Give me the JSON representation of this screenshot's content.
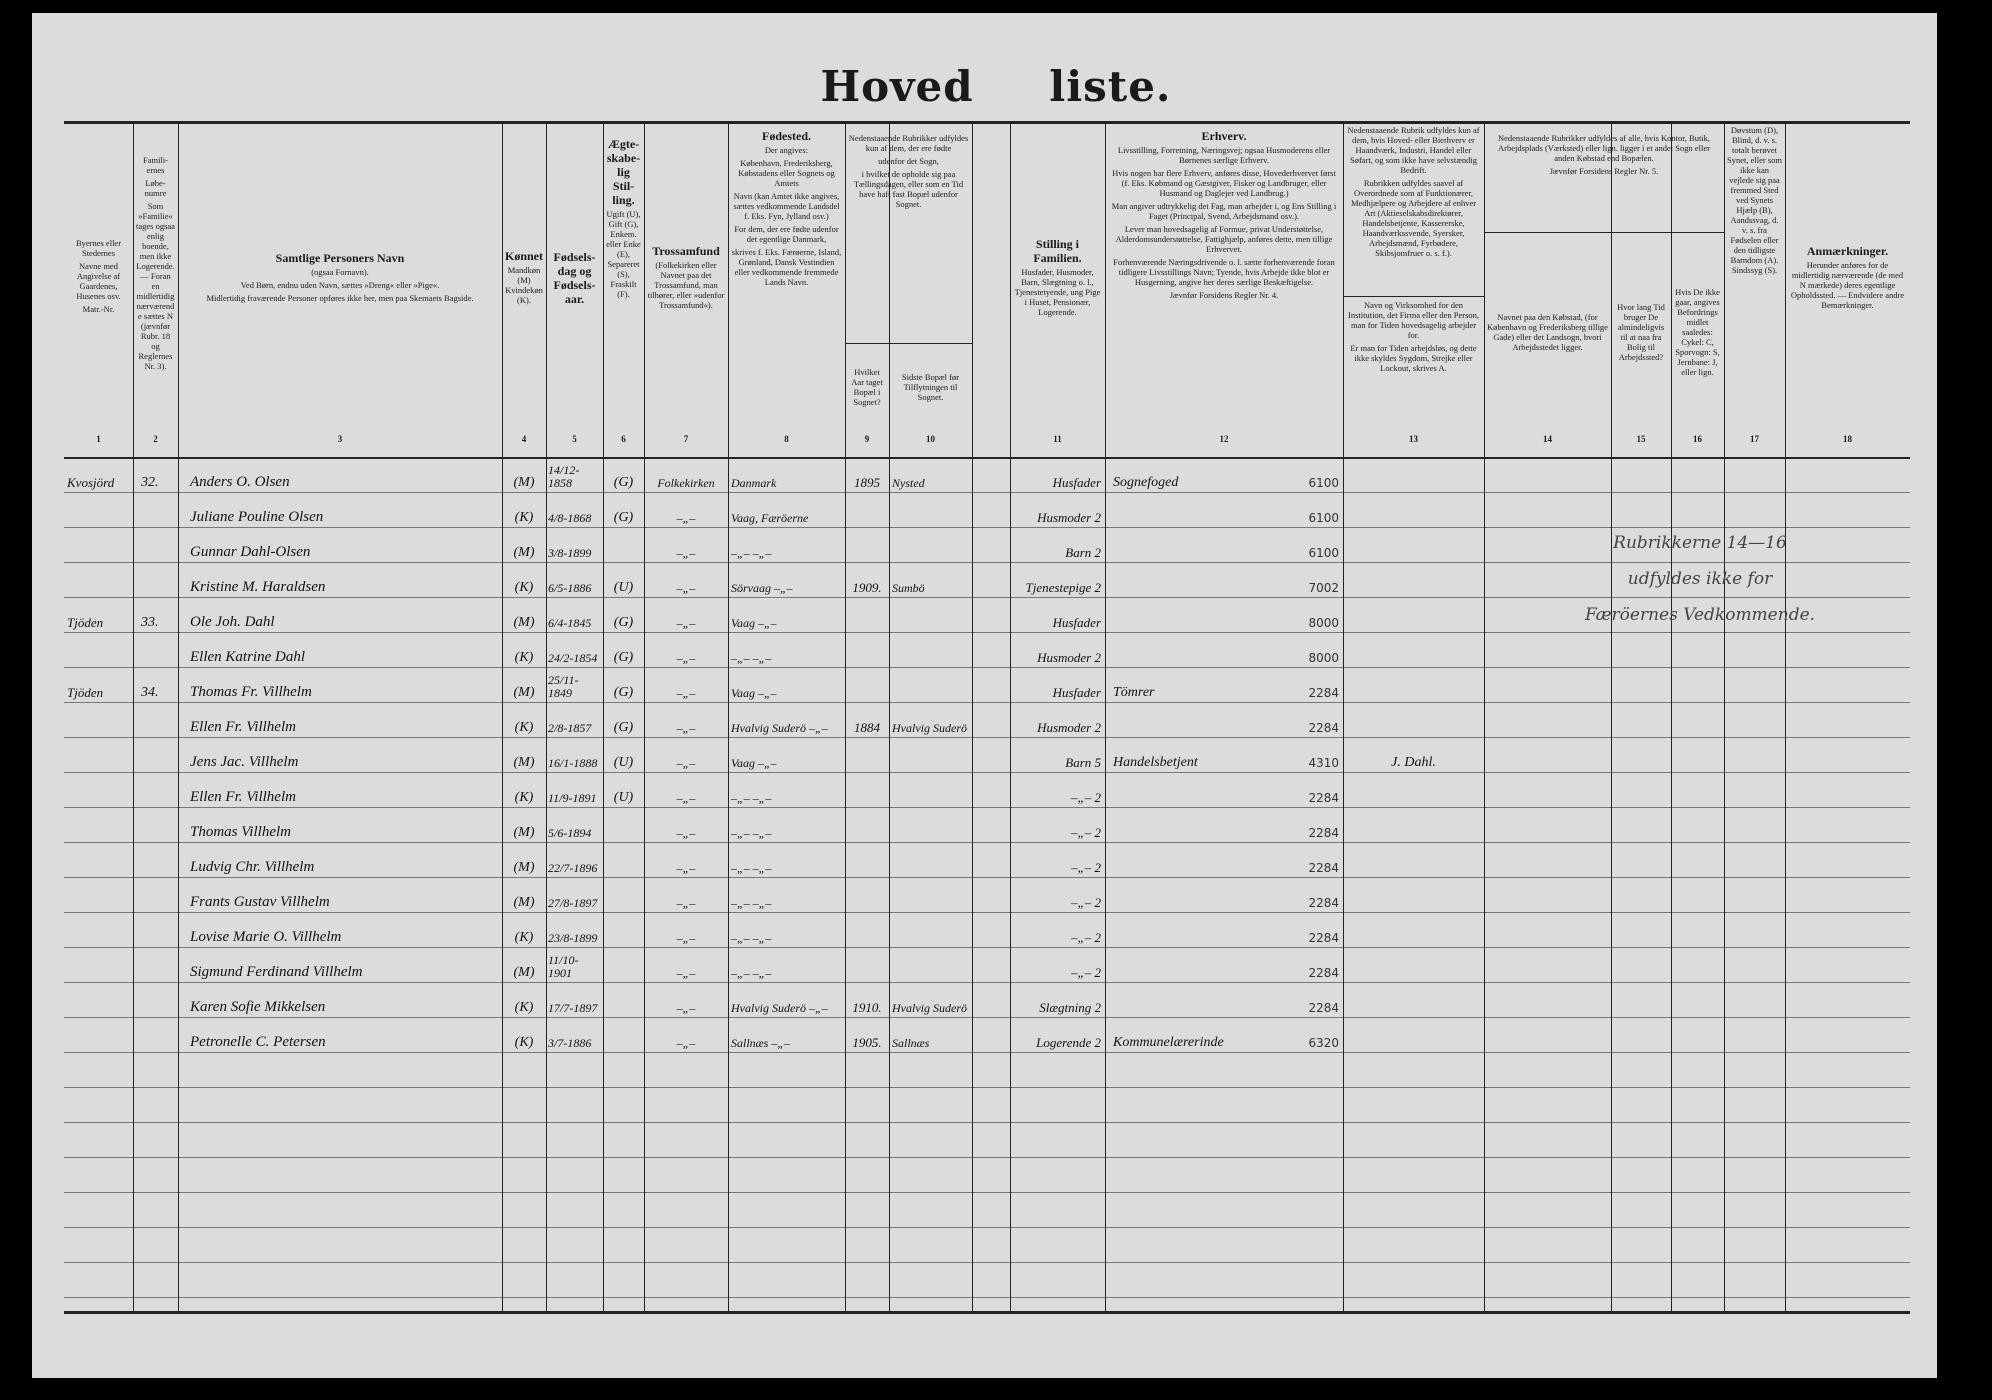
{
  "title": "Hoved liste.",
  "headers": {
    "c1": [
      "Byernes eller Stedernes",
      "Navne med Angivelse af Gaardenes, Husenes osv.",
      "Matr.-Nr."
    ],
    "c2": [
      "Famili-ernes",
      "Løbe-numre",
      "Som »Familie« tages ogsaa enlig boende, men ikke Logerende. — Foran en midlertidig nærværende sættes N (jævnfør Rubr. 18 og Reglernes Nr. 3)."
    ],
    "c3": [
      "Samtlige Personers Navn",
      "(ogsaa Fornavn).",
      "Ved Børn, endnu uden Navn, sættes »Dreng« eller »Pige«.",
      "Midlertidig fraværende Personer opføres ikke her, men paa Skemaets Bagside."
    ],
    "c4": [
      "Kønnet",
      "Mandkøn (M) Kvindekøn (K)."
    ],
    "c5": [
      "Fødsels-dag og Fødsels-aar."
    ],
    "c6": [
      "Ægte-skabe-lig Stil-ling.",
      "Ugift (U), Gift (G), Enkem. eller Enke (E), Separeret (S), Fraskilt (F)."
    ],
    "c7": [
      "Trossamfund",
      "(Folkekirken eller Navnet paa det Trossamfund, man tilhører, eller »udenfor Trossamfund«)."
    ],
    "c8": [
      "Fødested.",
      "Der angives:",
      "København, Frederiksberg, Købstadens eller Sognets og Amtets",
      "Navn (kan Amtet ikke angives, sættes vedkommende Landsdel f. Eks. Fyn, Jylland osv.)",
      "For dem, der ere fødte udenfor det egentlige Danmark,",
      "skrives f. Eks. Færøerne, Island, Grønland, Dansk Vestindien eller vedkommende fremmede Lands Navn."
    ],
    "c9_10_group": [
      "Nedenstaaende Rubrikker udfyldes kun af dem, der ere fødte",
      "udenfor det Sogn,",
      "i hvilket de opholde sig paa Tællingsdagen, eller som en Tid have haft fast Bopæl udenfor Sognet."
    ],
    "c9": [
      "Hvilket Aar taget Bopæl i Sognet?"
    ],
    "c10": [
      "Sidste Bopæl før Tilflytningen til Sognet."
    ],
    "c11": [
      "Stilling i Familien.",
      "Husfader, Husmoder, Barn, Slægtning o. l., Tjenestetyende, ung Pige i Huset, Pensionær, Logerende."
    ],
    "c12": [
      "Erhverv.",
      "Livsstilling, Forretning, Næringsvej; ogsaa Husmoderens eller Børnenes særlige Erhverv.",
      "Hvis nogen har flere Erhverv, anføres disse, Hovederhvervet først (f. Eks. Købmand og Gæstgiver, Fisker og Landbruger, eller Husmand og Daglejer ved Landbrug.)",
      "Man angiver udtrykkelig det Fag, man arbejder i, og Ens Stilling i Faget (Principal, Svend, Arbejdsmand osv.).",
      "Lever man hovedsagelig af Formue, privat Understøttelse, Alderdomsunderstøttelse, Fattighjælp, anføres dette, men tillige Erhvervet.",
      "Forhenværende Næringsdrivende o. l. sætte forhenværende foran tidligere Livsstillings Navn; Tyende, hvis Arbejde ikke blot er Husgerning, angive her deres særlige Beskæftigelse.",
      "Jævnfør Forsidens Regler Nr. 4."
    ],
    "c13_top": [
      "Nedenstaaende Rubrik udfyldes kun af dem, hvis Hoved- eller Bierhverv er Haandværk, Industri, Handel eller Søfart, og som ikke have selvstændig Bedrift.",
      "Rubrikken udfyldes saavel af Overordnede som af Funktionærer, Medhjælpere og Arbejdere af enhver Art (Aktieselskabsdirektører, Handelsbetjente, Kassererske, Haandværkssvende, Syersker, Arbejdsmænd, Fyrbødere, Skibsjomfruer o. s. f.)."
    ],
    "c13": [
      "Navn og Virksomhed for den Institution, det Firma eller den Person, man for Tiden hovedsagelig arbejder for.",
      "Er man for Tiden arbejdsløs, og dette ikke skyldes Sygdom, Strejke eller Lockout, skrives A."
    ],
    "c14_16_group": [
      "Nedenstaaende Rubrikker udfyldes af alle, hvis Kontor, Butik, Arbejdsplads (Værksted) eller lign. ligger i et andet Sogn eller anden Købstad end Bopælen.",
      "Jævnfør Forsidens Regler Nr. 5."
    ],
    "c14": [
      "Navnet paa den Købstad, (for København og Frederiksberg tillige Gade) eller det Landsogn, hvori Arbejdsstedet ligger."
    ],
    "c15": [
      "Hvor lang Tid bruger De almindeligvis til at naa fra Bolig til Arbejdssted?"
    ],
    "c16": [
      "Hvis De ikke gaar, angives Befordringsmidlet saaledes: Cykel: C, Sporvogn: S, Jernbane: J, eller lign."
    ],
    "c17": [
      "Døvstum (D), Blind, d. v. s. totalt berøvet Synet, eller som ikke kan vejlede sig paa fremmed Sted ved Synets Hjælp (B), Aandssvag, d. v. s. fra Fødselen eller den tidligste Barndom (A). Sindssyg (S)."
    ],
    "c18": [
      "Anmærkninger.",
      "Herunder anføres for de midlertidig nærværende (de med N mærkede) deres egentlige Opholdssted. — Endvidere andre Bemærkninger."
    ]
  },
  "column_numbers": [
    "1",
    "2",
    "3",
    "4",
    "5",
    "6",
    "7",
    "8",
    "9",
    "10",
    "11",
    "12",
    "13",
    "14",
    "15",
    "16",
    "17",
    "18"
  ],
  "rows": [
    {
      "place": "Kvosjörd",
      "family": "32.",
      "name": "Anders O. Olsen",
      "sex": "(M)",
      "born": "14/12-1858",
      "marital": "(G)",
      "faith": "Folkekirken",
      "birthplace": "Danmark",
      "year_moved": "1895",
      "last_residence": "Nysted",
      "position": "Husfader",
      "occupation": "Sognefoged",
      "code": "6100",
      "employer": ""
    },
    {
      "place": "",
      "family": "",
      "name": "Juliane Pouline Olsen",
      "sex": "(K)",
      "born": "4/8-1868",
      "marital": "(G)",
      "faith": "–„–",
      "birthplace": "Vaag, Færöerne",
      "year_moved": "",
      "last_residence": "",
      "position": "Husmoder 2",
      "occupation": "",
      "code": "6100",
      "employer": ""
    },
    {
      "place": "",
      "family": "",
      "name": "Gunnar Dahl-Olsen",
      "sex": "(M)",
      "born": "3/8-1899",
      "marital": "",
      "faith": "–„–",
      "birthplace": "–„–   –„–",
      "year_moved": "",
      "last_residence": "",
      "position": "Barn 2",
      "occupation": "",
      "code": "6100",
      "employer": ""
    },
    {
      "place": "",
      "family": "",
      "name": "Kristine M. Haraldsen",
      "sex": "(K)",
      "born": "6/5-1886",
      "marital": "(U)",
      "faith": "–„–",
      "birthplace": "Sörvaag  –„–",
      "year_moved": "1909.",
      "last_residence": "Sumbö",
      "position": "Tjenestepige 2",
      "occupation": "",
      "code": "7002",
      "employer": ""
    },
    {
      "place": "Tjöden",
      "family": "33.",
      "name": "Ole Joh. Dahl",
      "sex": "(M)",
      "born": "6/4-1845",
      "marital": "(G)",
      "faith": "–„–",
      "birthplace": "Vaag  –„–",
      "year_moved": "",
      "last_residence": "",
      "position": "Husfader",
      "occupation": "",
      "code": "8000",
      "employer": ""
    },
    {
      "place": "",
      "family": "",
      "name": "Ellen Katrine Dahl",
      "sex": "(K)",
      "born": "24/2-1854",
      "marital": "(G)",
      "faith": "–„–",
      "birthplace": "–„–   –„–",
      "year_moved": "",
      "last_residence": "",
      "position": "Husmoder 2",
      "occupation": "",
      "code": "8000",
      "employer": ""
    },
    {
      "place": "Tjöden",
      "family": "34.",
      "name": "Thomas Fr. Villhelm",
      "sex": "(M)",
      "born": "25/11-1849",
      "marital": "(G)",
      "faith": "–„–",
      "birthplace": "Vaag  –„–",
      "year_moved": "",
      "last_residence": "",
      "position": "Husfader",
      "occupation": "Tömrer",
      "code": "2284",
      "employer": ""
    },
    {
      "place": "",
      "family": "",
      "name": "Ellen Fr. Villhelm",
      "sex": "(K)",
      "born": "2/8-1857",
      "marital": "(G)",
      "faith": "–„–",
      "birthplace": "Hvalvig Suderö –„–",
      "year_moved": "1884",
      "last_residence": "Hvalvig Suderö",
      "position": "Husmoder 2",
      "occupation": "",
      "code": "2284",
      "employer": ""
    },
    {
      "place": "",
      "family": "",
      "name": "Jens Jac. Villhelm",
      "sex": "(M)",
      "born": "16/1-1888",
      "marital": "(U)",
      "faith": "–„–",
      "birthplace": "Vaag  –„–",
      "year_moved": "",
      "last_residence": "",
      "position": "Barn 5",
      "occupation": "Handelsbetjent",
      "code": "4310",
      "employer": "J. Dahl."
    },
    {
      "place": "",
      "family": "",
      "name": "Ellen Fr. Villhelm",
      "sex": "(K)",
      "born": "11/9-1891",
      "marital": "(U)",
      "faith": "–„–",
      "birthplace": "–„–   –„–",
      "year_moved": "",
      "last_residence": "",
      "position": "–„– 2",
      "occupation": "",
      "code": "2284",
      "employer": ""
    },
    {
      "place": "",
      "family": "",
      "name": "Thomas Villhelm",
      "sex": "(M)",
      "born": "5/6-1894",
      "marital": "",
      "faith": "–„–",
      "birthplace": "–„–   –„–",
      "year_moved": "",
      "last_residence": "",
      "position": "–„– 2",
      "occupation": "",
      "code": "2284",
      "employer": ""
    },
    {
      "place": "",
      "family": "",
      "name": "Ludvig Chr. Villhelm",
      "sex": "(M)",
      "born": "22/7-1896",
      "marital": "",
      "faith": "–„–",
      "birthplace": "–„–   –„–",
      "year_moved": "",
      "last_residence": "",
      "position": "–„– 2",
      "occupation": "",
      "code": "2284",
      "employer": ""
    },
    {
      "place": "",
      "family": "",
      "name": "Frants Gustav Villhelm",
      "sex": "(M)",
      "born": "27/8-1897",
      "marital": "",
      "faith": "–„–",
      "birthplace": "–„–   –„–",
      "year_moved": "",
      "last_residence": "",
      "position": "–„– 2",
      "occupation": "",
      "code": "2284",
      "employer": ""
    },
    {
      "place": "",
      "family": "",
      "name": "Lovise Marie O. Villhelm",
      "sex": "(K)",
      "born": "23/8-1899",
      "marital": "",
      "faith": "–„–",
      "birthplace": "–„–   –„–",
      "year_moved": "",
      "last_residence": "",
      "position": "–„– 2",
      "occupation": "",
      "code": "2284",
      "employer": ""
    },
    {
      "place": "",
      "family": "",
      "name": "Sigmund Ferdinand Villhelm",
      "sex": "(M)",
      "born": "11/10-1901",
      "marital": "",
      "faith": "–„–",
      "birthplace": "–„–   –„–",
      "year_moved": "",
      "last_residence": "",
      "position": "–„– 2",
      "occupation": "",
      "code": "2284",
      "employer": ""
    },
    {
      "place": "",
      "family": "",
      "name": "Karen Sofie Mikkelsen",
      "sex": "(K)",
      "born": "17/7-1897",
      "marital": "",
      "faith": "–„–",
      "birthplace": "Hvalvig Suderö –„–",
      "year_moved": "1910.",
      "last_residence": "Hvalvig Suderö",
      "position": "Slægtning 2",
      "occupation": "",
      "code": "2284",
      "employer": ""
    },
    {
      "place": "",
      "family": "",
      "name": "Petronelle C. Petersen",
      "sex": "(K)",
      "born": "3/7-1886",
      "marital": "",
      "faith": "–„–",
      "birthplace": "Sallnæs  –„–",
      "year_moved": "1905.",
      "last_residence": "Sallnæs",
      "position": "Logerende 2",
      "occupation": "Kommunelærerinde",
      "code": "6320",
      "employer": ""
    }
  ],
  "annotation_14_16": [
    "Rubrikkerne 14—16",
    "udfyldes ikke for",
    "Færöernes Vedkommende."
  ]
}
